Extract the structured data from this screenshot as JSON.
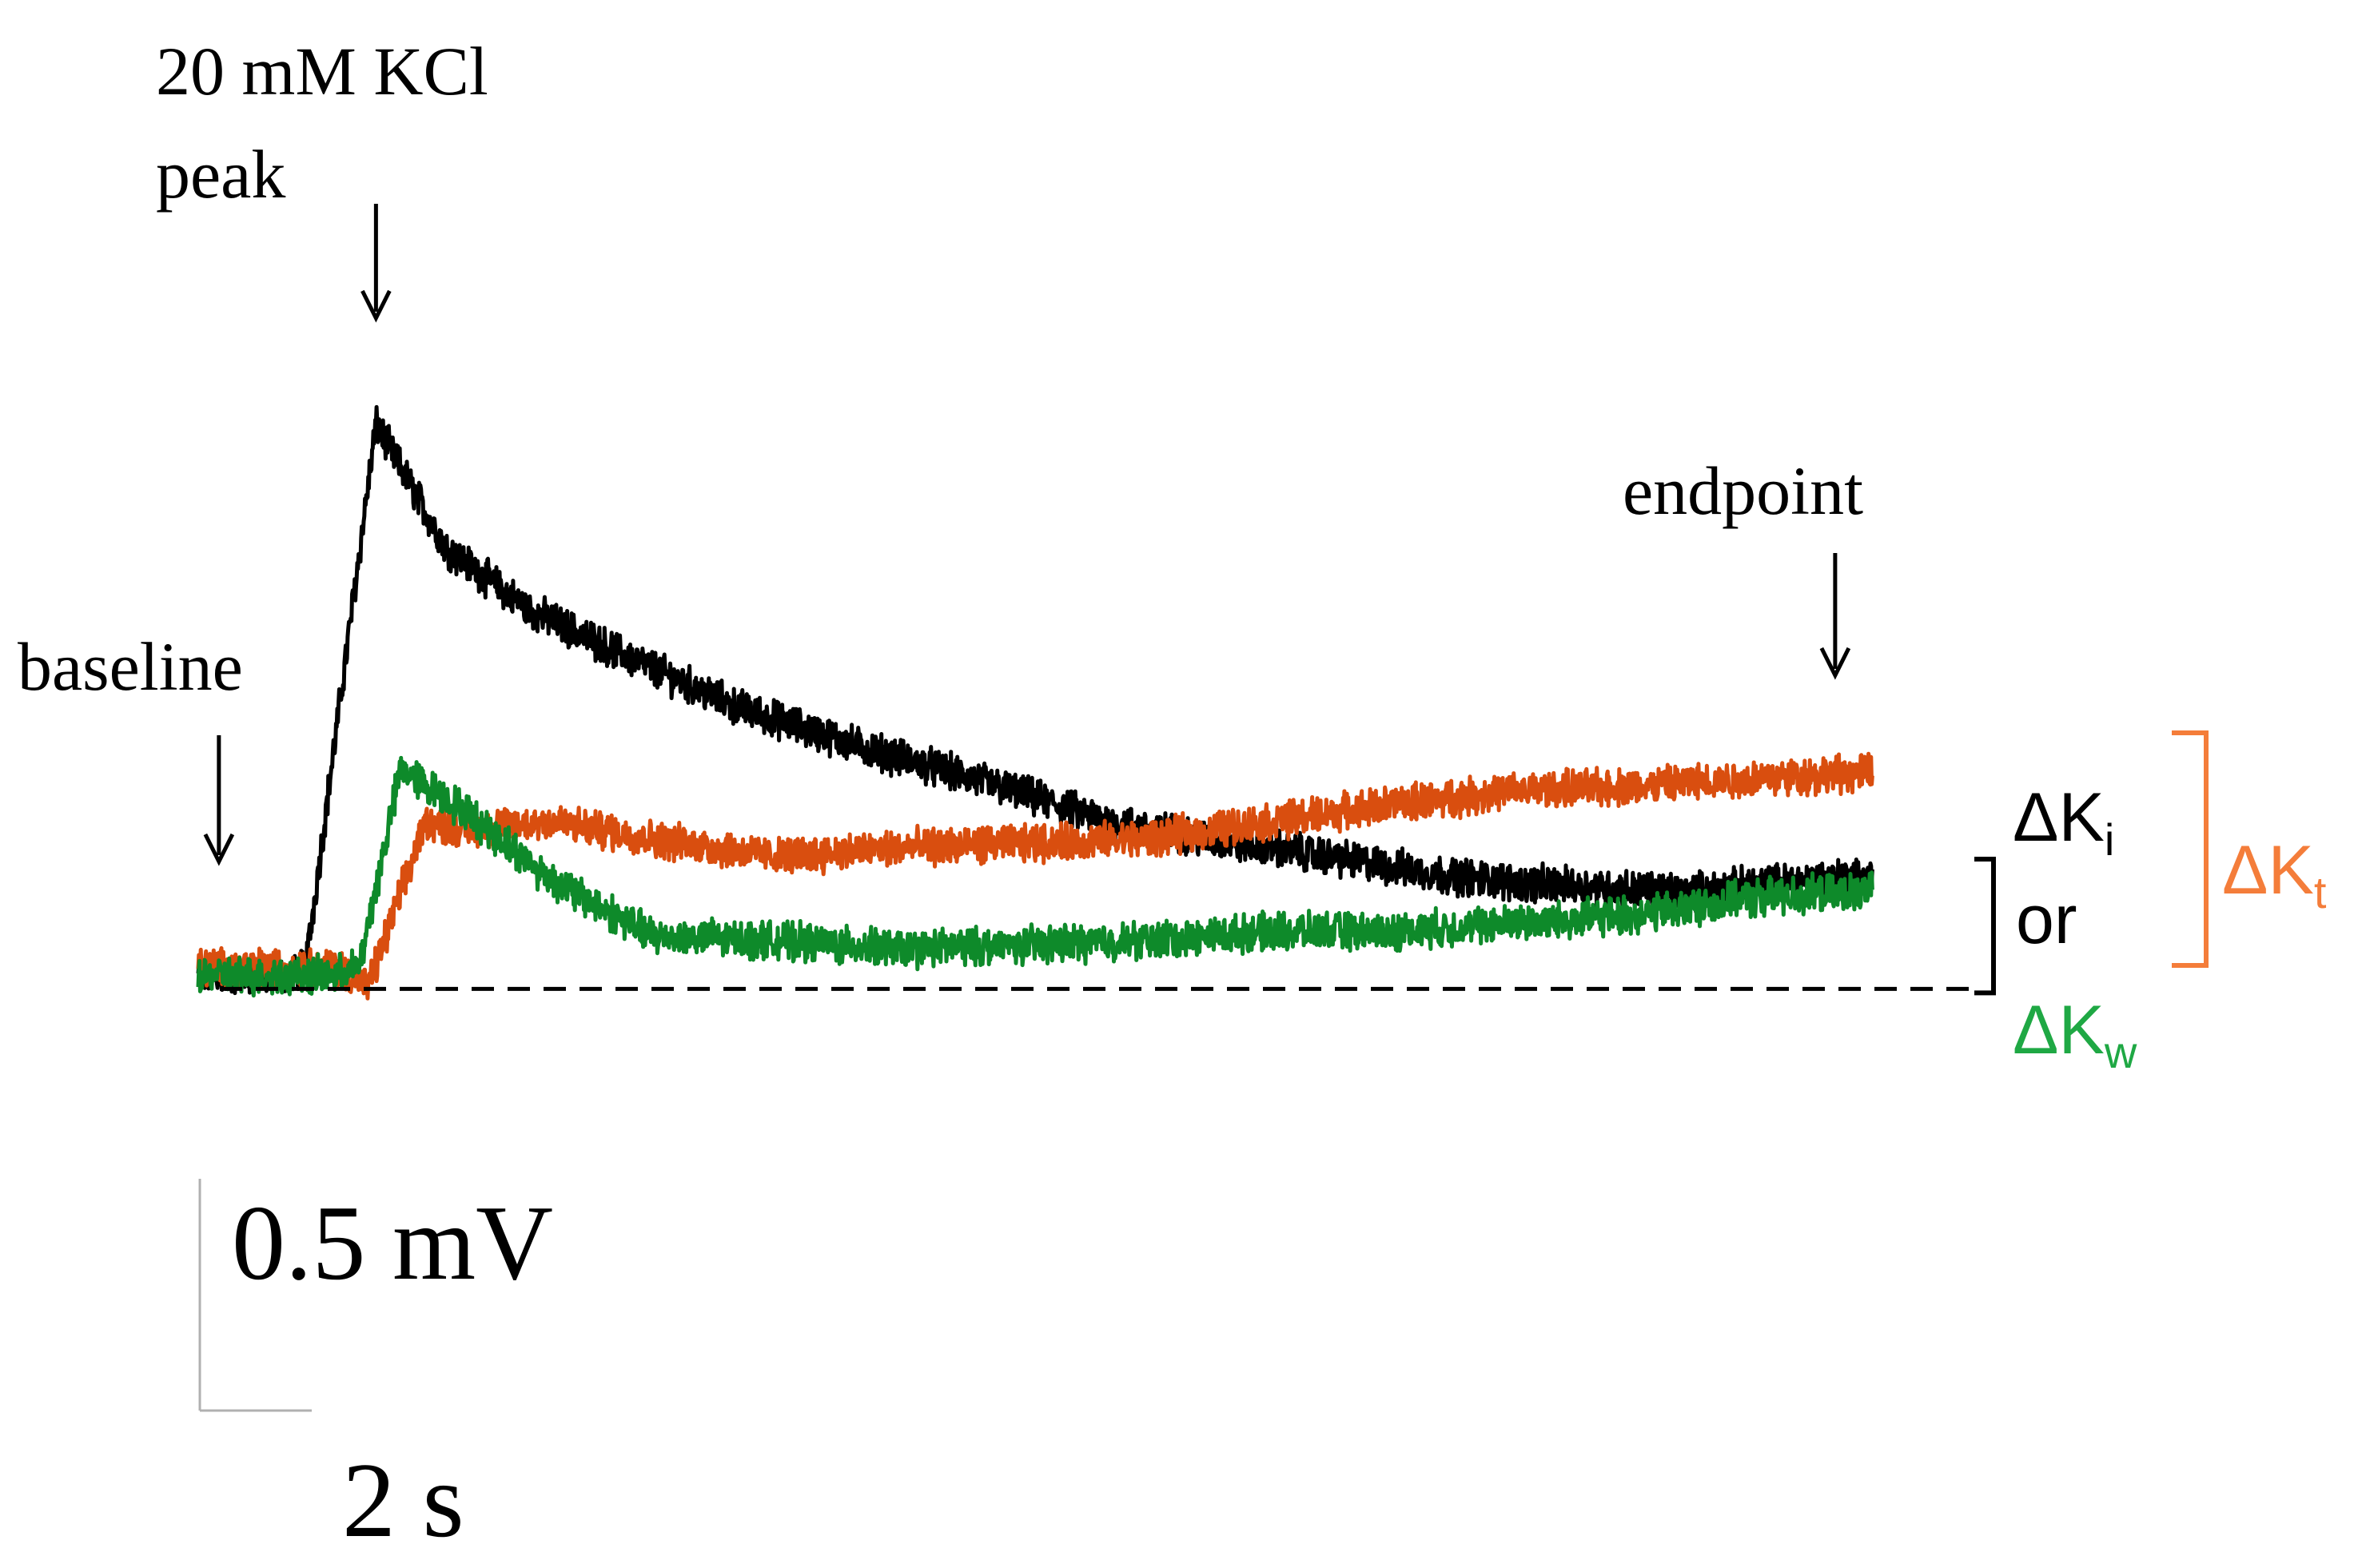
{
  "chart_data": {
    "type": "line",
    "title": "",
    "xlabel": "",
    "ylabel": "",
    "x_unit": "s",
    "y_unit": "mV",
    "xlim": [
      0,
      42
    ],
    "ylim": [
      -0.05,
      1.45
    ],
    "baseline_level": 0,
    "noise_amplitude": 0.035,
    "series": [
      {
        "name": "black",
        "color": "#000000",
        "x": [
          0,
          2.2,
          2.6,
          4.3,
          6,
          8,
          10,
          13,
          16,
          19,
          22,
          25,
          26,
          28,
          30,
          32,
          34,
          36,
          38,
          40.5
        ],
        "y": [
          0.03,
          0.03,
          0.05,
          1.28,
          1.0,
          0.86,
          0.77,
          0.64,
          0.55,
          0.47,
          0.38,
          0.33,
          0.32,
          0.29,
          0.26,
          0.24,
          0.23,
          0.22,
          0.24,
          0.26
        ]
      },
      {
        "name": "orange",
        "color": "#D94E0F",
        "x": [
          0,
          3.4,
          4.1,
          5.5,
          6.5,
          8.5,
          11,
          14,
          17,
          20,
          23,
          26,
          29,
          32,
          35,
          38,
          40.5
        ],
        "y": [
          0.05,
          0.05,
          0.0,
          0.38,
          0.36,
          0.38,
          0.34,
          0.3,
          0.32,
          0.33,
          0.34,
          0.38,
          0.42,
          0.45,
          0.46,
          0.48,
          0.49
        ]
      },
      {
        "name": "green",
        "color": "#0E8A2A",
        "x": [
          0,
          3.3,
          3.9,
          4.9,
          6.5,
          8.5,
          11,
          14,
          17,
          20,
          23,
          26,
          29,
          32,
          35,
          38,
          40.5
        ],
        "y": [
          0.03,
          0.03,
          0.05,
          0.5,
          0.4,
          0.25,
          0.12,
          0.11,
          0.09,
          0.1,
          0.11,
          0.13,
          0.13,
          0.15,
          0.17,
          0.21,
          0.22
        ]
      }
    ],
    "scale_bar": {
      "voltage_value": 0.5,
      "voltage_label": "0.5 mV",
      "time_value": 2,
      "time_label": "2 s"
    },
    "annotations": {
      "peak_label_1": "20 mM KCl",
      "peak_label_2": "peak",
      "peak_x": 4.3,
      "baseline_label": "baseline",
      "baseline_x": 0.5,
      "endpoint_label": "endpoint",
      "endpoint_x": 39.6
    },
    "legend": {
      "delta": "ΔK",
      "i_sub": "i",
      "or_text": "or",
      "w_sub": "w",
      "t_sub": "t",
      "black_color": "#000000",
      "green_color": "#1FA844",
      "orange_color": "#F47D3A"
    }
  }
}
